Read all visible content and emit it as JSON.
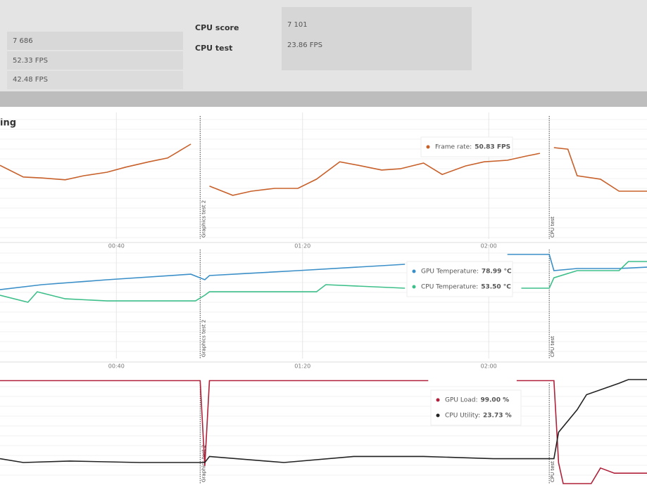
{
  "scores": {
    "left": [
      "7 686",
      "52.33 FPS",
      "42.48 FPS"
    ],
    "rows": [
      {
        "label": "CPU score",
        "value": "7 101"
      },
      {
        "label": "CPU test",
        "value": "23.86 FPS"
      }
    ]
  },
  "heading": "ing",
  "charts": [
    {
      "type": "line",
      "xlim": [
        15,
        154
      ],
      "ylim": [
        30,
        70
      ],
      "xticks": [
        {
          "value": 40,
          "label": "00:40"
        },
        {
          "value": 80,
          "label": "01:20"
        },
        {
          "value": 120,
          "label": "02:00"
        }
      ],
      "markers": [
        {
          "label": "Graphics test 2",
          "x": 58
        },
        {
          "label": "CPU test",
          "x": 133
        }
      ],
      "series": [
        {
          "name": "Frame rate:",
          "readout": "50.83 FPS",
          "color": "#c8602a",
          "x": [
            15,
            20,
            24,
            29,
            33,
            38,
            42,
            47,
            51,
            56,
            58,
            60,
            65,
            69,
            74,
            79,
            83,
            88,
            92,
            97,
            101,
            106,
            110,
            115,
            119,
            124,
            128,
            131,
            133,
            134,
            137,
            139,
            144,
            148,
            154
          ],
          "values": [
            53.3,
            49.6,
            49.3,
            48.7,
            50,
            51.1,
            52.7,
            54.4,
            55.6,
            60,
            null,
            46.7,
            43.8,
            45.1,
            46,
            46,
            48.9,
            54.4,
            53.3,
            51.8,
            52.2,
            54,
            50.4,
            53.1,
            54.4,
            54.9,
            56.2,
            57.1,
            null,
            58.9,
            58.4,
            50,
            48.9,
            45.1,
            45.1
          ]
        }
      ]
    },
    {
      "type": "line",
      "xlim": [
        15,
        154
      ],
      "ylim": [
        0,
        85
      ],
      "xticks": [
        {
          "value": 40,
          "label": "00:40"
        },
        {
          "value": 80,
          "label": "01:20"
        },
        {
          "value": 120,
          "label": "02:00"
        }
      ],
      "markers": [
        {
          "label": "Graphics test 2",
          "x": 58
        },
        {
          "label": "CPU test",
          "x": 133
        }
      ],
      "series": [
        {
          "name": "GPU Temperature:",
          "readout": "78.99 °C",
          "color": "#3a8fc8",
          "x": [
            15,
            24,
            38,
            56,
            59,
            60,
            79,
            97,
            102,
            110,
            124,
            133,
            134,
            139,
            148,
            154
          ],
          "values": [
            52,
            55.8,
            59.5,
            63.7,
            59.5,
            62.7,
            66.4,
            70.1,
            71.2,
            null,
            78.6,
            78.6,
            66.4,
            68,
            68,
            69
          ]
        },
        {
          "name": "CPU Temperature:",
          "readout": "53.50 °C",
          "color": "#3dbf8a",
          "x": [
            15,
            21,
            23,
            29,
            38,
            57,
            59,
            60,
            83,
            85,
            102,
            110,
            127,
            133,
            134,
            139,
            148,
            150,
            154
          ],
          "values": [
            47.8,
            42.5,
            50.4,
            45.1,
            43.5,
            43.5,
            47.8,
            50.4,
            50.4,
            55.8,
            53.1,
            null,
            53.1,
            53.1,
            61,
            66.4,
            66.4,
            73.3,
            73.3
          ]
        }
      ]
    },
    {
      "type": "line",
      "xlim": [
        15,
        154
      ],
      "ylim": [
        0,
        100
      ],
      "markers": [
        {
          "label": "Graphics test 2",
          "x": 58
        },
        {
          "label": "CPU test",
          "x": 133
        }
      ],
      "series": [
        {
          "name": "GPU Load:",
          "readout": "99.00 %",
          "color": "#b0203a",
          "x": [
            15,
            58,
            59,
            60,
            107,
            110,
            126,
            134,
            135,
            136,
            142,
            144,
            147,
            154
          ],
          "values": [
            99,
            99,
            17,
            99,
            99,
            null,
            99,
            99,
            20,
            0,
            0,
            15,
            10,
            10
          ]
        },
        {
          "name": "CPU Utility:",
          "readout": "23.73 %",
          "color": "#222",
          "x": [
            15,
            20,
            30,
            45,
            59,
            60,
            76,
            91,
            106,
            121,
            130,
            134,
            135,
            139,
            141,
            148,
            150,
            154
          ],
          "values": [
            23.9,
            20.3,
            21.7,
            20.3,
            20.3,
            26.1,
            20.3,
            26.1,
            26.1,
            23.9,
            23.9,
            23.9,
            49.3,
            71,
            85.5,
            96.4,
            100,
            100
          ]
        }
      ]
    }
  ]
}
